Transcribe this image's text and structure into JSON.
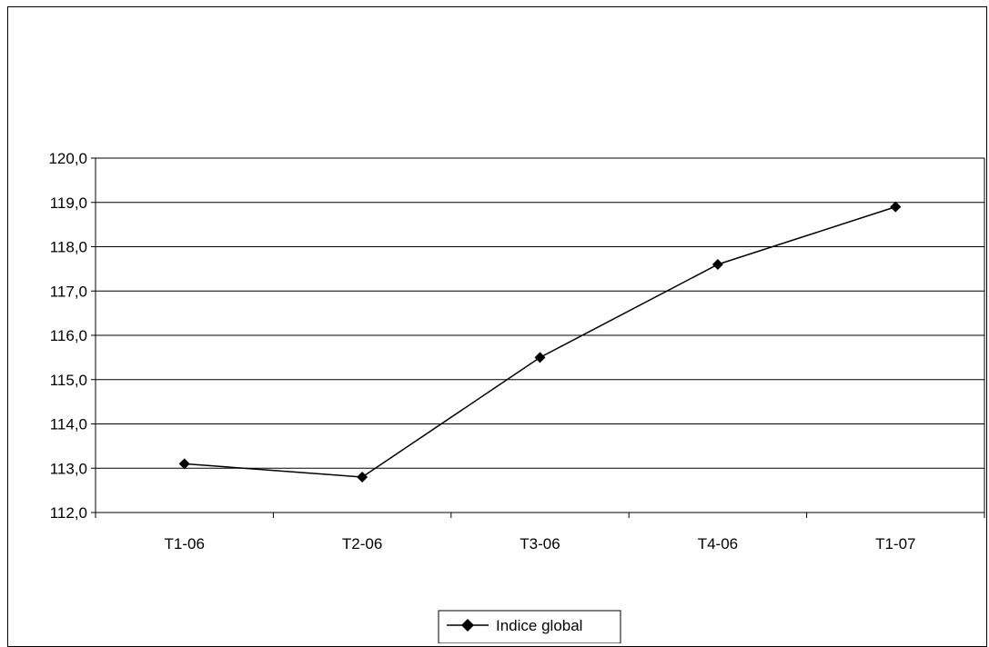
{
  "chart_data": {
    "type": "line",
    "categories": [
      "T1-06",
      "T2-06",
      "T3-06",
      "T4-06",
      "T1-07"
    ],
    "series": [
      {
        "name": "Indice global",
        "values": [
          113.1,
          112.8,
          115.5,
          117.6,
          118.9
        ]
      }
    ],
    "ylim": [
      112,
      120
    ],
    "y_ticks": [
      "112,0",
      "113,0",
      "114,0",
      "115,0",
      "116,0",
      "117,0",
      "118,0",
      "119,0",
      "120,0"
    ],
    "grid": true,
    "legend_position": "bottom",
    "title": "",
    "xlabel": "",
    "ylabel": ""
  },
  "colors": {
    "line": "#000000",
    "grid": "#000000",
    "background": "#ffffff"
  }
}
